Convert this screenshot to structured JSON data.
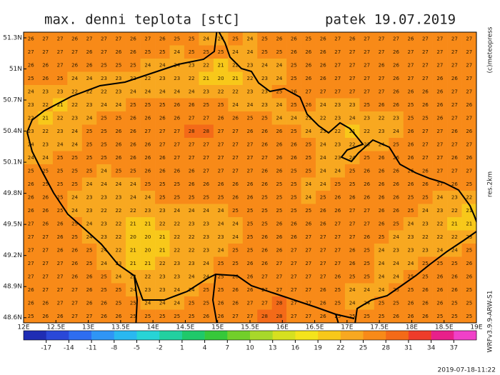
{
  "title": "max. denni teplota [stC]",
  "date": "patek 19.07.2019",
  "copyright": "(c)meteopress",
  "resolution": "res.2km",
  "model": "WRFv3.9.9-ARW-S1",
  "run": "2019-07-18-11:22",
  "map": {
    "xlim": [
      12,
      19
    ],
    "ylim": [
      48.55,
      51.355
    ],
    "xticks": [
      {
        "value": 12,
        "label": "12E"
      },
      {
        "value": 12.5,
        "label": "12.5E"
      },
      {
        "value": 13,
        "label": "13E"
      },
      {
        "value": 13.5,
        "label": "13.5E"
      },
      {
        "value": 14,
        "label": "14E"
      },
      {
        "value": 14.5,
        "label": "14.5E"
      },
      {
        "value": 15,
        "label": "15E"
      },
      {
        "value": 15.5,
        "label": "15.5E"
      },
      {
        "value": 16,
        "label": "16E"
      },
      {
        "value": 16.5,
        "label": "16.5E"
      },
      {
        "value": 17,
        "label": "17E"
      },
      {
        "value": 17.5,
        "label": "17.5E"
      },
      {
        "value": 18,
        "label": "18E"
      },
      {
        "value": 18.5,
        "label": "18.5E"
      },
      {
        "value": 19,
        "label": "19E"
      }
    ],
    "yticks": [
      {
        "value": 51.3,
        "label": "51.3N"
      },
      {
        "value": 51,
        "label": "51N"
      },
      {
        "value": 50.7,
        "label": "50.7N"
      },
      {
        "value": 50.4,
        "label": "50.4N"
      },
      {
        "value": 50.1,
        "label": "50.1N"
      },
      {
        "value": 49.8,
        "label": "49.8N"
      },
      {
        "value": 49.5,
        "label": "49.5N"
      },
      {
        "value": 49.2,
        "label": "49.2N"
      },
      {
        "value": 48.9,
        "label": "48.9N"
      },
      {
        "value": 48.6,
        "label": "48.6N"
      }
    ],
    "grid": [
      [
        26,
        27,
        27,
        26,
        27,
        27,
        27,
        26,
        27,
        26,
        25,
        25,
        24,
        24,
        25,
        24,
        25,
        26,
        26,
        25,
        26,
        27,
        26,
        27,
        27,
        27,
        26,
        27,
        27,
        27,
        27
      ],
      [
        27,
        27,
        27,
        27,
        26,
        27,
        26,
        26,
        25,
        25,
        24,
        25,
        25,
        25,
        24,
        24,
        25,
        25,
        26,
        26,
        26,
        27,
        27,
        27,
        27,
        26,
        27,
        27,
        27,
        27,
        27
      ],
      [
        26,
        26,
        27,
        26,
        26,
        25,
        25,
        25,
        24,
        24,
        24,
        23,
        22,
        21,
        22,
        23,
        24,
        24,
        25,
        26,
        26,
        27,
        27,
        27,
        26,
        26,
        27,
        27,
        27,
        27,
        27
      ],
      [
        25,
        26,
        25,
        24,
        24,
        23,
        23,
        22,
        22,
        23,
        23,
        22,
        21,
        20,
        21,
        22,
        23,
        24,
        25,
        26,
        26,
        27,
        27,
        27,
        27,
        26,
        27,
        27,
        26,
        26,
        27
      ],
      [
        24,
        23,
        23,
        22,
        22,
        22,
        23,
        24,
        24,
        24,
        24,
        24,
        23,
        22,
        22,
        23,
        23,
        25,
        26,
        27,
        27,
        27,
        27,
        27,
        27,
        26,
        26,
        26,
        26,
        27,
        27
      ],
      [
        23,
        22,
        21,
        22,
        23,
        24,
        24,
        25,
        25,
        25,
        26,
        26,
        25,
        25,
        24,
        24,
        23,
        24,
        25,
        26,
        24,
        23,
        23,
        25,
        26,
        26,
        25,
        26,
        26,
        27,
        26
      ],
      [
        22,
        21,
        22,
        23,
        24,
        25,
        25,
        26,
        26,
        26,
        26,
        27,
        27,
        26,
        26,
        25,
        25,
        24,
        24,
        23,
        22,
        23,
        24,
        23,
        22,
        23,
        25,
        25,
        26,
        27,
        27
      ],
      [
        23,
        22,
        23,
        24,
        25,
        25,
        26,
        26,
        27,
        27,
        27,
        28,
        28,
        27,
        27,
        26,
        26,
        26,
        25,
        24,
        23,
        22,
        21,
        22,
        23,
        24,
        26,
        27,
        27,
        26,
        26
      ],
      [
        24,
        23,
        24,
        24,
        25,
        25,
        26,
        26,
        26,
        27,
        27,
        27,
        27,
        27,
        27,
        27,
        26,
        26,
        26,
        25,
        24,
        23,
        22,
        23,
        24,
        25,
        26,
        27,
        27,
        27,
        27
      ],
      [
        24,
        24,
        25,
        25,
        25,
        25,
        26,
        26,
        26,
        26,
        27,
        27,
        27,
        27,
        27,
        27,
        27,
        26,
        26,
        25,
        24,
        23,
        24,
        25,
        26,
        26,
        26,
        27,
        27,
        26,
        26
      ],
      [
        25,
        25,
        25,
        25,
        25,
        24,
        25,
        25,
        26,
        26,
        26,
        26,
        27,
        27,
        27,
        27,
        26,
        26,
        25,
        25,
        24,
        24,
        25,
        26,
        26,
        26,
        26,
        26,
        27,
        27,
        27
      ],
      [
        26,
        25,
        25,
        25,
        24,
        24,
        24,
        24,
        25,
        25,
        25,
        26,
        26,
        26,
        26,
        26,
        26,
        25,
        25,
        24,
        24,
        25,
        25,
        26,
        26,
        26,
        26,
        26,
        27,
        26,
        25
      ],
      [
        26,
        26,
        25,
        24,
        23,
        23,
        23,
        24,
        24,
        25,
        25,
        25,
        25,
        25,
        26,
        26,
        25,
        25,
        25,
        24,
        25,
        26,
        26,
        26,
        26,
        26,
        25,
        25,
        24,
        23,
        22
      ],
      [
        26,
        26,
        25,
        24,
        23,
        22,
        22,
        22,
        23,
        23,
        24,
        24,
        24,
        24,
        25,
        25,
        25,
        25,
        25,
        25,
        26,
        26,
        27,
        27,
        26,
        26,
        25,
        24,
        23,
        22,
        21
      ],
      [
        27,
        26,
        26,
        25,
        24,
        23,
        22,
        21,
        21,
        22,
        22,
        23,
        23,
        24,
        24,
        25,
        25,
        26,
        26,
        26,
        26,
        27,
        27,
        27,
        26,
        25,
        24,
        23,
        22,
        21,
        21
      ],
      [
        27,
        27,
        26,
        25,
        24,
        23,
        22,
        20,
        20,
        21,
        22,
        22,
        23,
        23,
        24,
        25,
        26,
        26,
        26,
        27,
        27,
        27,
        27,
        26,
        25,
        24,
        23,
        22,
        22,
        22,
        23
      ],
      [
        27,
        27,
        26,
        26,
        25,
        24,
        22,
        21,
        20,
        21,
        22,
        22,
        23,
        24,
        25,
        25,
        26,
        26,
        27,
        27,
        27,
        27,
        26,
        25,
        24,
        23,
        23,
        23,
        24,
        24,
        25
      ],
      [
        27,
        27,
        27,
        26,
        25,
        24,
        23,
        21,
        21,
        22,
        23,
        23,
        24,
        25,
        25,
        26,
        26,
        27,
        27,
        27,
        27,
        27,
        26,
        25,
        24,
        24,
        24,
        25,
        25,
        25,
        26
      ],
      [
        27,
        27,
        27,
        26,
        26,
        25,
        24,
        22,
        22,
        23,
        23,
        24,
        24,
        25,
        26,
        26,
        27,
        27,
        27,
        27,
        27,
        26,
        25,
        25,
        24,
        24,
        25,
        25,
        26,
        26,
        26
      ],
      [
        26,
        27,
        27,
        27,
        26,
        25,
        25,
        24,
        23,
        23,
        24,
        24,
        25,
        25,
        26,
        26,
        27,
        27,
        27,
        27,
        26,
        25,
        24,
        24,
        24,
        25,
        25,
        26,
        26,
        26,
        25
      ],
      [
        26,
        26,
        27,
        27,
        26,
        26,
        25,
        25,
        24,
        24,
        24,
        25,
        25,
        26,
        26,
        27,
        27,
        28,
        27,
        27,
        26,
        25,
        24,
        24,
        25,
        25,
        26,
        26,
        26,
        25,
        25
      ],
      [
        25,
        26,
        26,
        27,
        27,
        26,
        26,
        25,
        25,
        25,
        25,
        25,
        26,
        26,
        27,
        27,
        28,
        28,
        27,
        27,
        26,
        25,
        25,
        25,
        25,
        26,
        26,
        26,
        25,
        25,
        25
      ]
    ]
  },
  "colorbar": {
    "min": -20,
    "max": 40,
    "ticks": [
      -17,
      -14,
      -11,
      -8,
      -5,
      -2,
      1,
      4,
      7,
      10,
      13,
      16,
      19,
      22,
      25,
      28,
      31,
      34,
      37
    ],
    "colors": [
      "#1f2db4",
      "#2a48d8",
      "#2e6df0",
      "#2f95f5",
      "#29b8f0",
      "#27d4d6",
      "#22d0a0",
      "#1fc96a",
      "#36c83a",
      "#72cf2a",
      "#a8d82a",
      "#d6e020",
      "#f4e41c",
      "#f8c81a",
      "#f8a820",
      "#f88a18",
      "#f46a18",
      "#ee3c2a",
      "#e8208a",
      "#f040c8"
    ]
  }
}
